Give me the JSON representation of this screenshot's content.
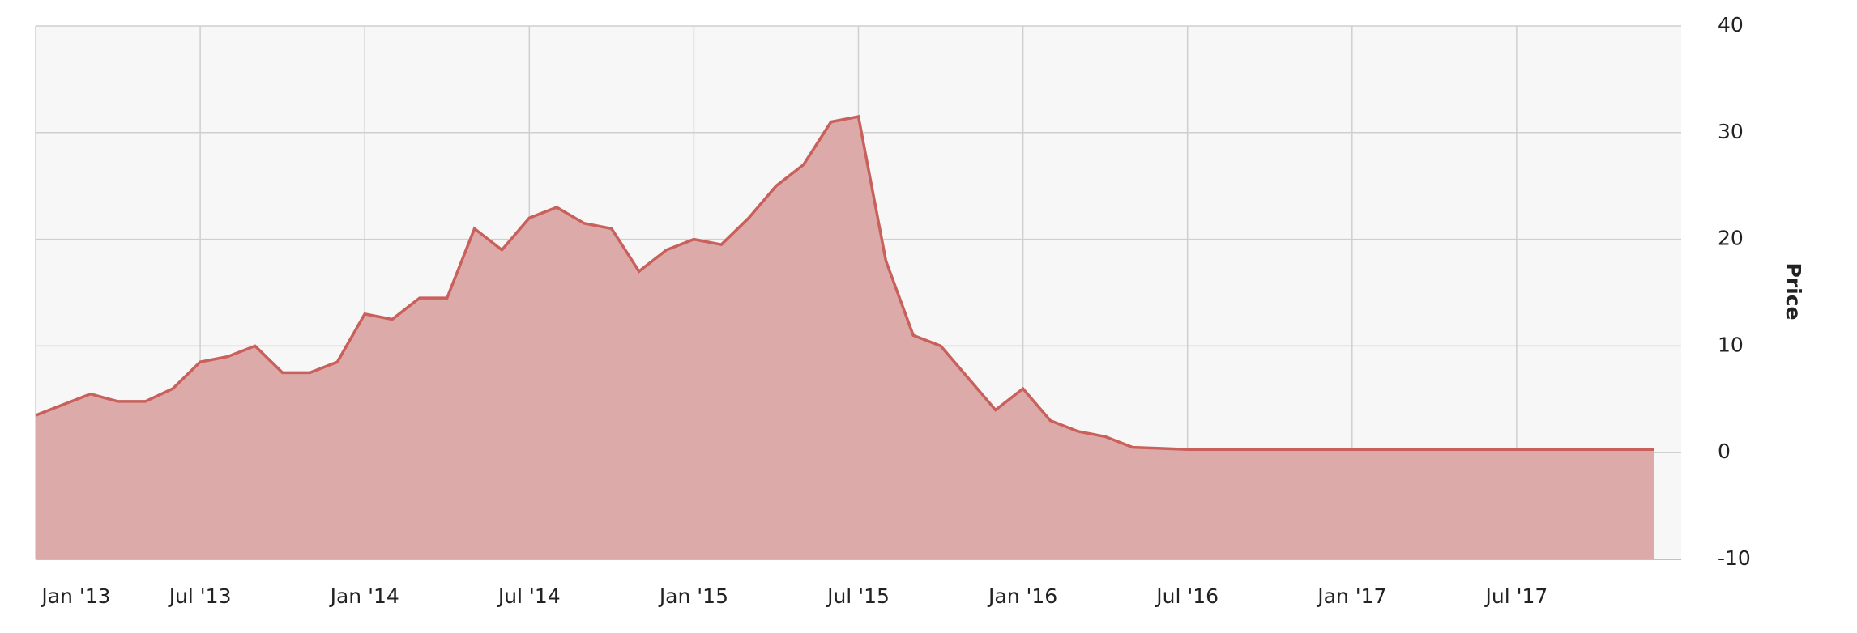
{
  "chart_data": {
    "type": "area",
    "y_axis_label": "Price",
    "x": [
      "2013-01",
      "2013-02",
      "2013-03",
      "2013-04",
      "2013-05",
      "2013-06",
      "2013-07",
      "2013-08",
      "2013-09",
      "2013-10",
      "2013-11",
      "2013-12",
      "2014-01",
      "2014-02",
      "2014-03",
      "2014-04",
      "2014-05",
      "2014-06",
      "2014-07",
      "2014-08",
      "2014-09",
      "2014-10",
      "2014-11",
      "2014-12",
      "2015-01",
      "2015-02",
      "2015-03",
      "2015-04",
      "2015-05",
      "2015-06",
      "2015-07",
      "2015-08",
      "2015-09",
      "2015-10",
      "2015-11",
      "2015-12",
      "2016-01",
      "2016-02",
      "2016-03",
      "2016-04",
      "2016-05",
      "2016-06",
      "2016-07",
      "2016-08",
      "2016-09",
      "2016-10",
      "2016-11",
      "2016-12",
      "2017-01",
      "2017-02",
      "2017-03",
      "2017-04",
      "2017-05",
      "2017-06",
      "2017-07",
      "2017-08",
      "2017-09",
      "2017-10",
      "2017-11",
      "2017-12"
    ],
    "series": [
      {
        "name": "Price",
        "color": "#c9605b",
        "fill": "#dcaaa9",
        "values": [
          3.5,
          4.5,
          5.5,
          4.8,
          4.8,
          6,
          8.5,
          9,
          10,
          7.5,
          7.5,
          8.5,
          13,
          12.5,
          14.5,
          14.5,
          21,
          19,
          22,
          23,
          21.5,
          21,
          17,
          19,
          20,
          19.5,
          22,
          25,
          27,
          31,
          31.5,
          18,
          11,
          10,
          7,
          4,
          6,
          3,
          2,
          1.5,
          0.5,
          0.4,
          0.3,
          0.3,
          0.3,
          0.3,
          0.3,
          0.3,
          0.3,
          0.3,
          0.3,
          0.3,
          0.3,
          0.3,
          0.3,
          0.3,
          0.3,
          0.3,
          0.3,
          0.3
        ]
      }
    ],
    "xlim": [
      "2013-01",
      "2018-01"
    ],
    "xticks": [
      {
        "value": "2013-01",
        "label": "Jan '13"
      },
      {
        "value": "2013-07",
        "label": "Jul '13"
      },
      {
        "value": "2014-01",
        "label": "Jan '14"
      },
      {
        "value": "2014-07",
        "label": "Jul '14"
      },
      {
        "value": "2015-01",
        "label": "Jan '15"
      },
      {
        "value": "2015-07",
        "label": "Jul '15"
      },
      {
        "value": "2016-01",
        "label": "Jan '16"
      },
      {
        "value": "2016-07",
        "label": "Jul '16"
      },
      {
        "value": "2017-01",
        "label": "Jan '17"
      },
      {
        "value": "2017-07",
        "label": "Jul '17"
      }
    ],
    "ylim": [
      -10,
      40
    ],
    "yticks": [
      -10,
      0,
      10,
      20,
      30,
      40
    ],
    "grid": true
  }
}
